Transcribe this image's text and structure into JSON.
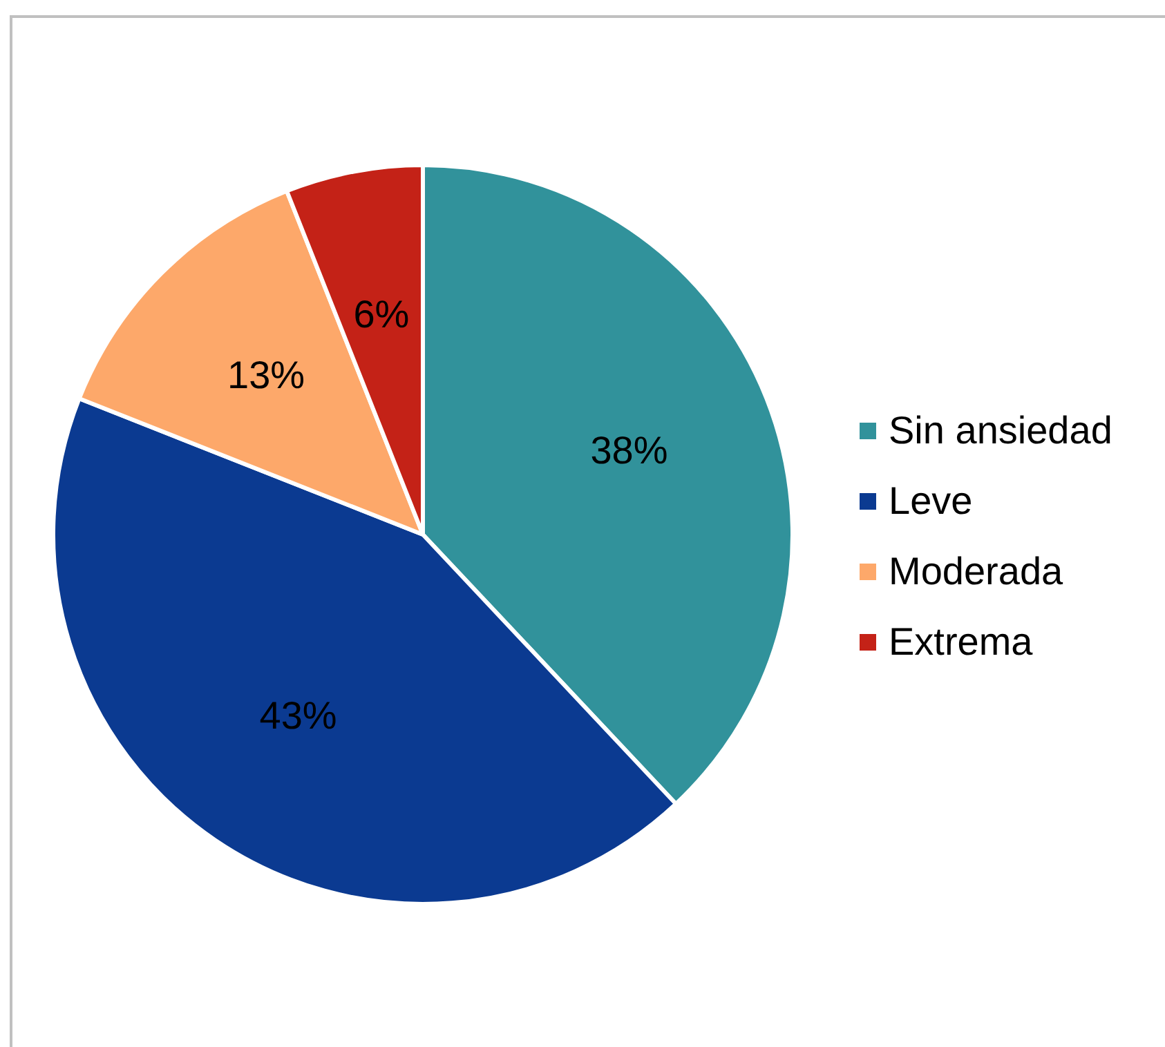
{
  "chart_data": {
    "type": "pie",
    "categories": [
      "Sin ansiedad",
      "Leve",
      "Moderada",
      "Extrema"
    ],
    "values": [
      38,
      43,
      13,
      6
    ],
    "colors": [
      "#31929b",
      "#0b3a91",
      "#fda86a",
      "#c42217"
    ],
    "value_labels": [
      "38%",
      "43%",
      "13%",
      "6%"
    ],
    "legend": "right"
  }
}
